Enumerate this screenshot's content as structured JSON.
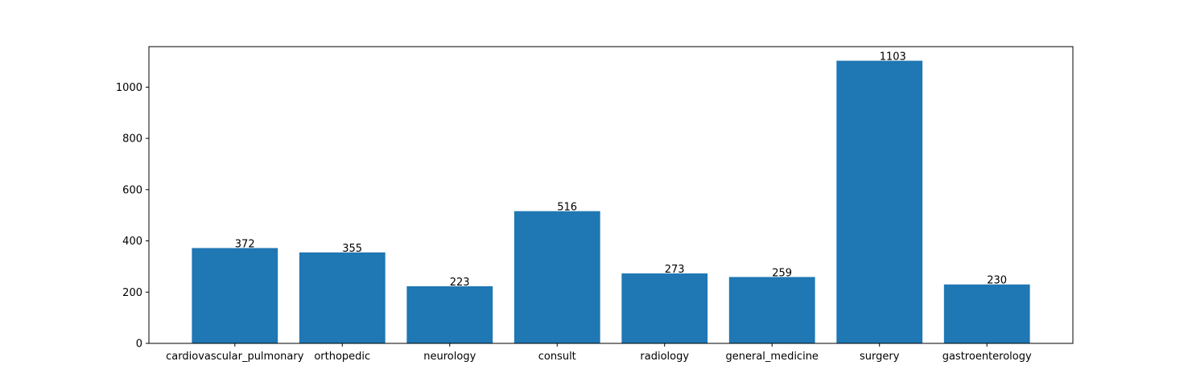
{
  "chart_data": {
    "type": "bar",
    "categories": [
      "cardiovascular_pulmonary",
      "orthopedic",
      "neurology",
      "consult",
      "radiology",
      "general_medicine",
      "surgery",
      "gastroenterology"
    ],
    "values": [
      372,
      355,
      223,
      516,
      273,
      259,
      1103,
      230
    ],
    "data_labels": [
      "372",
      "355",
      "223",
      "516",
      "273",
      "259",
      "1103",
      "230"
    ],
    "yticks": [
      0,
      200,
      400,
      600,
      800,
      1000
    ],
    "ylim": [
      0,
      1158
    ],
    "title": "",
    "xlabel": "",
    "ylabel": "",
    "grid": false,
    "bar_color": "#1f77b4"
  }
}
